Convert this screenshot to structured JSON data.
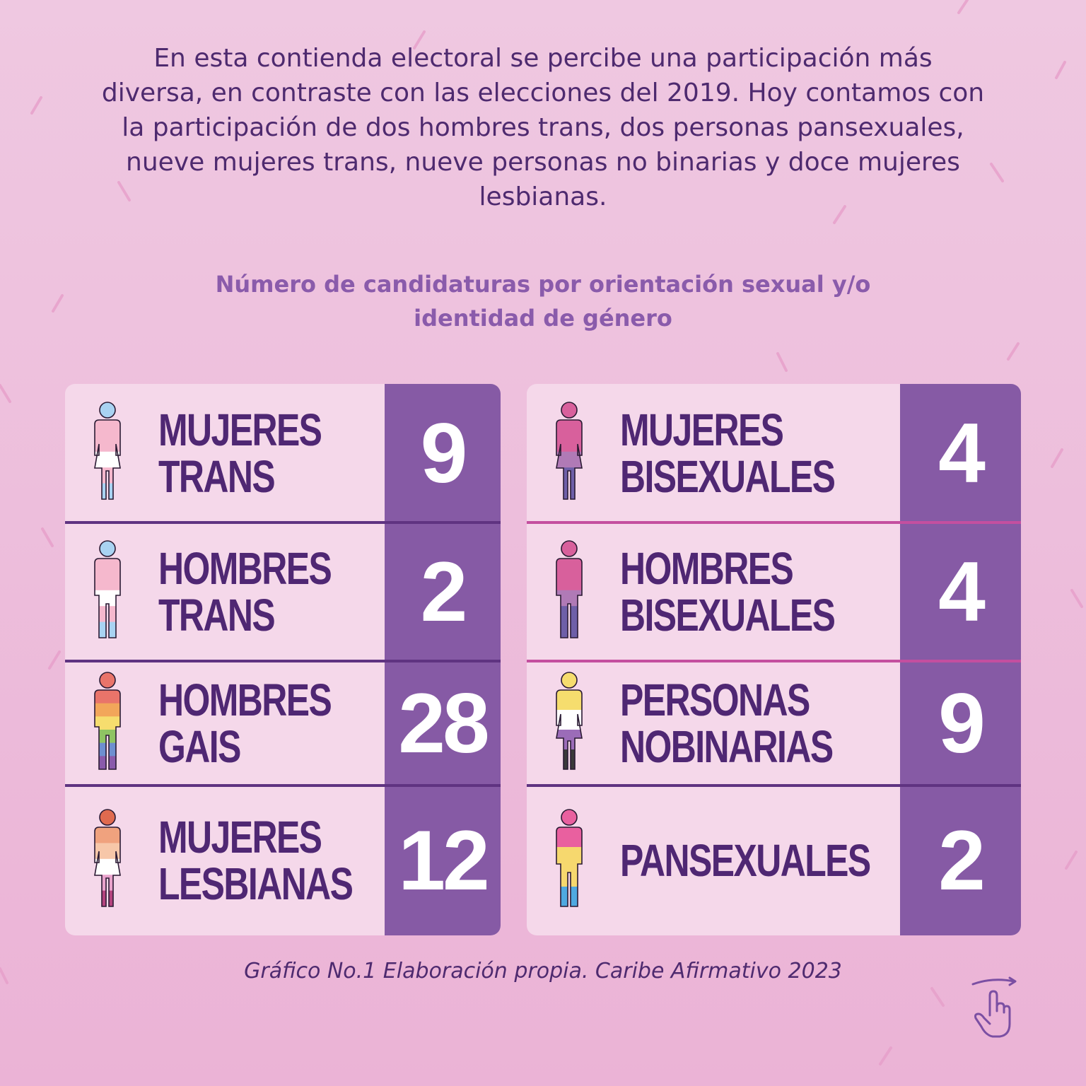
{
  "intro_text": "En esta contienda electoral se percibe una participación más diversa, en contraste con las elecciones del 2019. Hoy contamos con la participación de dos hombres trans, dos personas pansexuales, nueve mujeres trans, nueve personas no binarias y doce mujeres lesbianas.",
  "chart_data": {
    "type": "table",
    "title": "Número de candidaturas por orientación sexual y/o identidad de género",
    "categories": [
      "MUJERES TRANS",
      "HOMBRES TRANS",
      "HOMBRES GAIS",
      "MUJERES LESBIANAS",
      "MUJERES BISEXUALES",
      "HOMBRES BISEXUALES",
      "PERSONAS NOBINARIAS",
      "PANSEXUALES"
    ],
    "values": [
      9,
      2,
      28,
      12,
      4,
      4,
      9,
      2
    ],
    "rows": [
      {
        "label_lines": [
          "MUJERES",
          "TRANS"
        ],
        "value": "9",
        "icon": "trans-woman-flag-icon",
        "head_color": "#a9d3f2",
        "figure": "woman",
        "stripes": [
          "#f5b8cd",
          "#f5b8cd",
          "#ffffff",
          "#f5b8cd",
          "#a9d3f2"
        ]
      },
      {
        "label_lines": [
          "HOMBRES",
          "TRANS"
        ],
        "value": "2",
        "icon": "trans-man-flag-icon",
        "head_color": "#a9d3f2",
        "figure": "man",
        "stripes": [
          "#f5b8cd",
          "#f5b8cd",
          "#ffffff",
          "#f5b8cd",
          "#a9d3f2"
        ]
      },
      {
        "label_lines": [
          "HOMBRES",
          "GAIS"
        ],
        "value": "28",
        "icon": "gay-man-flag-icon",
        "head_color": "#e9746a",
        "figure": "man",
        "stripes": [
          "#e9746a",
          "#f2a65a",
          "#f6dd6e",
          "#8fc463",
          "#6e8fd0",
          "#8a5bab"
        ]
      },
      {
        "label_lines": [
          "MUJERES",
          "LESBIANAS"
        ],
        "value": "12",
        "icon": "lesbian-woman-flag-icon",
        "head_color": "#e06a4f",
        "figure": "woman",
        "stripes": [
          "#f0a27e",
          "#f7c7a9",
          "#ffffff",
          "#e9a3cc",
          "#b4437e"
        ]
      },
      {
        "label_lines": [
          "MUJERES",
          "BISEXUALES"
        ],
        "value": "4",
        "icon": "bisexual-woman-flag-icon",
        "head_color": "#d8609c",
        "figure": "woman",
        "stripes": [
          "#d8609c",
          "#d8609c",
          "#b07ab6",
          "#6e5fa8",
          "#6e5fa8"
        ]
      },
      {
        "label_lines": [
          "HOMBRES",
          "BISEXUALES"
        ],
        "value": "4",
        "icon": "bisexual-man-flag-icon",
        "head_color": "#d8609c",
        "figure": "man",
        "stripes": [
          "#d8609c",
          "#d8609c",
          "#b07ab6",
          "#6e5fa8",
          "#6e5fa8"
        ]
      },
      {
        "label_lines": [
          "PERSONAS",
          "NOBINARIAS"
        ],
        "value": "9",
        "icon": "nonbinary-person-flag-icon",
        "head_color": "#f6dd6e",
        "figure": "woman",
        "stripes": [
          "#f6dd6e",
          "#ffffff",
          "#9b6cb8",
          "#3a3a3a"
        ]
      },
      {
        "label_lines": [
          "PANSEXUALES"
        ],
        "value": "2",
        "icon": "pansexual-person-flag-icon",
        "head_color": "#e9609f",
        "figure": "man",
        "stripes": [
          "#e9609f",
          "#f6d86e",
          "#f6d86e",
          "#4fa9e0"
        ]
      }
    ]
  },
  "source": "Gráfico No.1 Elaboración propia. Caribe Afirmativo 2023",
  "swipe_icon": "swipe-hand-icon"
}
